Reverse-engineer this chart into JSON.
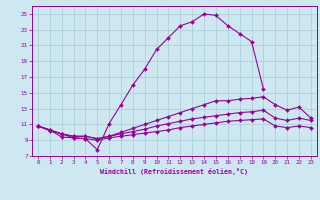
{
  "xlabel": "Windchill (Refroidissement éolien,°C)",
  "background_color": "#cde8f0",
  "grid_color": "#a8ccd8",
  "line_color": "#990099",
  "line_big_x": [
    0,
    1,
    2,
    3,
    4,
    5,
    6,
    7,
    8,
    9,
    10,
    11,
    12,
    13,
    14,
    15,
    16,
    17,
    18,
    19
  ],
  "line_big_y": [
    10.8,
    10.3,
    9.4,
    9.3,
    9.2,
    7.8,
    11.1,
    13.5,
    16.0,
    18.0,
    20.5,
    22.0,
    23.5,
    24.0,
    25.0,
    24.8,
    23.5,
    22.5,
    21.5,
    15.5
  ],
  "line3_x": [
    0,
    1,
    2,
    3,
    4,
    5,
    6,
    7,
    8,
    9,
    10,
    11,
    12,
    13,
    14,
    15,
    16,
    17,
    18,
    19,
    20,
    21,
    22,
    23
  ],
  "line3_y": [
    10.8,
    10.3,
    9.8,
    9.5,
    9.5,
    9.2,
    9.5,
    10.0,
    10.5,
    11.0,
    11.5,
    12.0,
    12.5,
    13.0,
    13.5,
    14.0,
    14.0,
    14.2,
    14.3,
    14.5,
    13.5,
    12.8,
    13.2,
    11.8
  ],
  "line4_y": [
    10.8,
    10.3,
    9.8,
    9.5,
    9.5,
    9.2,
    9.5,
    9.8,
    10.1,
    10.4,
    10.8,
    11.1,
    11.4,
    11.7,
    11.9,
    12.1,
    12.3,
    12.5,
    12.6,
    12.8,
    11.8,
    11.5,
    11.8,
    11.5
  ],
  "line5_y": [
    10.8,
    10.2,
    9.8,
    9.3,
    9.2,
    9.0,
    9.3,
    9.5,
    9.7,
    9.9,
    10.1,
    10.3,
    10.6,
    10.8,
    11.0,
    11.2,
    11.4,
    11.5,
    11.6,
    11.7,
    10.8,
    10.6,
    10.8,
    10.6
  ],
  "ylim": [
    7,
    26
  ],
  "xlim_min": -0.5,
  "xlim_max": 23.5,
  "yticks": [
    7,
    9,
    11,
    13,
    15,
    17,
    19,
    21,
    23,
    25
  ],
  "xticks": [
    0,
    1,
    2,
    3,
    4,
    5,
    6,
    7,
    8,
    9,
    10,
    11,
    12,
    13,
    14,
    15,
    16,
    17,
    18,
    19,
    20,
    21,
    22,
    23
  ]
}
